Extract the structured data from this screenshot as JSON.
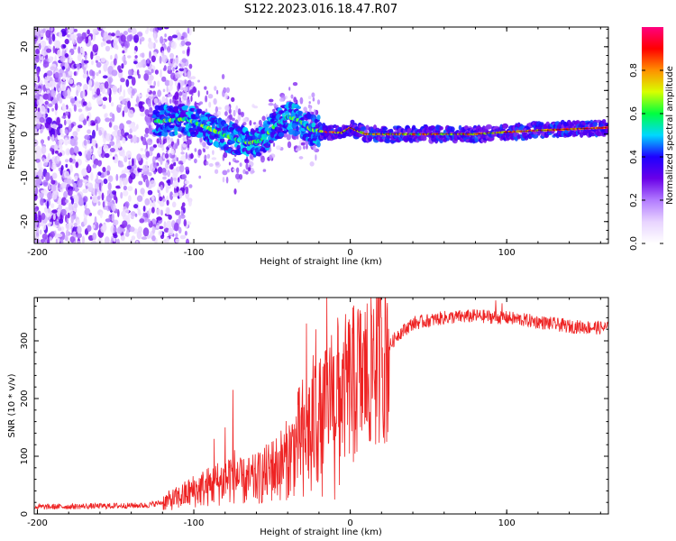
{
  "title": "S122.2023.016.18.47.R07",
  "chart_data": [
    {
      "type": "heatmap",
      "xlabel": "Height of straight line (km)",
      "ylabel": "Frequency (Hz)",
      "xlim": [
        -202,
        165
      ],
      "ylim": [
        -25,
        24.5
      ],
      "xticks": [
        -200,
        -100,
        0,
        100
      ],
      "xtick_labels": [
        "-200",
        "-100",
        "0",
        "100"
      ],
      "yticks": [
        -20,
        -10,
        0,
        10,
        20
      ],
      "ytick_labels": [
        "-20",
        "-10",
        "0",
        "10",
        "20"
      ],
      "grid": false,
      "colorbar": {
        "label": "Normalized spectral amplitude",
        "range": [
          0,
          1
        ],
        "ticks": [
          0.0,
          0.2,
          0.4,
          0.6,
          0.8
        ],
        "tick_labels": [
          "0.0",
          "0.2",
          "0.4",
          "0.6",
          "0.8"
        ],
        "colors": [
          "#ffffff",
          "#e8d4ff",
          "#b27bff",
          "#6a00e8",
          "#1e00ff",
          "#00d8ff",
          "#00ff40",
          "#d8ff00",
          "#ff9000",
          "#ff0000",
          "#ff0080"
        ]
      },
      "ridge": [
        {
          "x": -120,
          "y": 3.0
        },
        {
          "x": -105,
          "y": 3.5
        },
        {
          "x": -95,
          "y": 2.0
        },
        {
          "x": -85,
          "y": 0.5
        },
        {
          "x": -75,
          "y": -1.0
        },
        {
          "x": -65,
          "y": -2.0
        },
        {
          "x": -57,
          "y": -1.5
        },
        {
          "x": -48,
          "y": 2.0
        },
        {
          "x": -40,
          "y": 4.0
        },
        {
          "x": -32,
          "y": 3.0
        },
        {
          "x": -25,
          "y": 1.0
        },
        {
          "x": -15,
          "y": 0.5
        },
        {
          "x": -5,
          "y": 0.3
        },
        {
          "x": 0,
          "y": 1.5
        },
        {
          "x": 10,
          "y": 0.0
        },
        {
          "x": 40,
          "y": 0.0
        },
        {
          "x": 80,
          "y": 0.0
        },
        {
          "x": 100,
          "y": 0.5
        },
        {
          "x": 130,
          "y": 1.0
        },
        {
          "x": 165,
          "y": 1.5
        }
      ]
    },
    {
      "type": "line",
      "xlabel": "Height of straight line (km)",
      "ylabel": "SNR (10 * v/v)",
      "xlim": [
        -202,
        165
      ],
      "ylim": [
        0,
        375
      ],
      "xticks": [
        -200,
        -100,
        0,
        100
      ],
      "xtick_labels": [
        "-200",
        "-100",
        "0",
        "100"
      ],
      "yticks": [
        0,
        100,
        200,
        300
      ],
      "ytick_labels": [
        "0",
        "100",
        "200",
        "300"
      ],
      "grid": false,
      "series_color": "#ee2222",
      "envelope": [
        {
          "x": -202,
          "y": 12
        },
        {
          "x": -150,
          "y": 14
        },
        {
          "x": -130,
          "y": 15
        },
        {
          "x": -120,
          "y": 20
        },
        {
          "x": -110,
          "y": 28
        },
        {
          "x": -100,
          "y": 40
        },
        {
          "x": -90,
          "y": 48
        },
        {
          "x": -80,
          "y": 58
        },
        {
          "x": -75,
          "y": 70
        },
        {
          "x": -70,
          "y": 55
        },
        {
          "x": -60,
          "y": 60
        },
        {
          "x": -50,
          "y": 75
        },
        {
          "x": -40,
          "y": 95
        },
        {
          "x": -30,
          "y": 140
        },
        {
          "x": -20,
          "y": 170
        },
        {
          "x": -10,
          "y": 200
        },
        {
          "x": 0,
          "y": 225
        },
        {
          "x": 10,
          "y": 240
        },
        {
          "x": 20,
          "y": 270
        },
        {
          "x": 30,
          "y": 310
        },
        {
          "x": 40,
          "y": 330
        },
        {
          "x": 60,
          "y": 340
        },
        {
          "x": 80,
          "y": 343
        },
        {
          "x": 100,
          "y": 340
        },
        {
          "x": 120,
          "y": 333
        },
        {
          "x": 140,
          "y": 325
        },
        {
          "x": 165,
          "y": 322
        }
      ],
      "spikes": [
        {
          "x": -87,
          "y": 130
        },
        {
          "x": -80,
          "y": 150
        },
        {
          "x": -75,
          "y": 215
        },
        {
          "x": -72,
          "y": 90
        },
        {
          "x": -50,
          "y": 125
        },
        {
          "x": -28,
          "y": 330
        },
        {
          "x": -25,
          "y": 200
        },
        {
          "x": -22,
          "y": 320
        },
        {
          "x": -18,
          "y": 260
        },
        {
          "x": -15,
          "y": 375
        },
        {
          "x": -12,
          "y": 310
        },
        {
          "x": -8,
          "y": 340
        },
        {
          "x": -4,
          "y": 230
        },
        {
          "x": 0,
          "y": 300
        },
        {
          "x": 5,
          "y": 355
        },
        {
          "x": 10,
          "y": 320
        },
        {
          "x": 15,
          "y": 355
        },
        {
          "x": 20,
          "y": 340
        },
        {
          "x": 93,
          "y": 370
        },
        {
          "x": 97,
          "y": 365
        }
      ],
      "dips": [
        {
          "x": -30,
          "y": 30
        },
        {
          "x": -25,
          "y": 40
        },
        {
          "x": -18,
          "y": 30
        },
        {
          "x": -10,
          "y": 25
        },
        {
          "x": -7,
          "y": 50
        },
        {
          "x": 2,
          "y": 90
        },
        {
          "x": 8,
          "y": 175
        },
        {
          "x": 11,
          "y": 160
        },
        {
          "x": 13,
          "y": 130
        }
      ]
    }
  ]
}
